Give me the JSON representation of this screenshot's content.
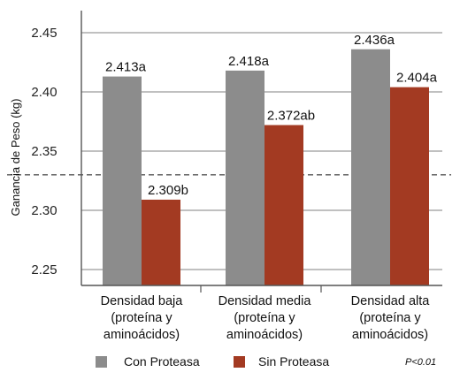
{
  "chart_data": {
    "type": "bar",
    "ylabel": "Ganancia de Peso (kg)",
    "ylim": [
      2.22,
      2.47
    ],
    "yticks": [
      "2.25",
      "2.30",
      "2.35",
      "2.40",
      "2.45"
    ],
    "categories": [
      [
        "Densidad baja",
        "(proteína y",
        "aminoácidos)"
      ],
      [
        "Densidad media",
        "(proteína y",
        "aminoácidos)"
      ],
      [
        "Densidad alta",
        "(proteína y",
        "aminoácidos)"
      ]
    ],
    "series": [
      {
        "name": "Con Proteasa",
        "color": "#8c8c8c",
        "values": [
          2.413,
          2.418,
          2.436
        ],
        "labels": [
          "2.413a",
          "2.418a",
          "2.436a"
        ]
      },
      {
        "name": "Sin Proteasa",
        "color": "#a33a22",
        "values": [
          2.309,
          2.372,
          2.404
        ],
        "labels": [
          "2.309b",
          "2.372ab",
          "2.404a"
        ]
      }
    ],
    "reference_line": 2.33,
    "grid": true,
    "legend_position": "bottom",
    "note": "P<0.01"
  }
}
